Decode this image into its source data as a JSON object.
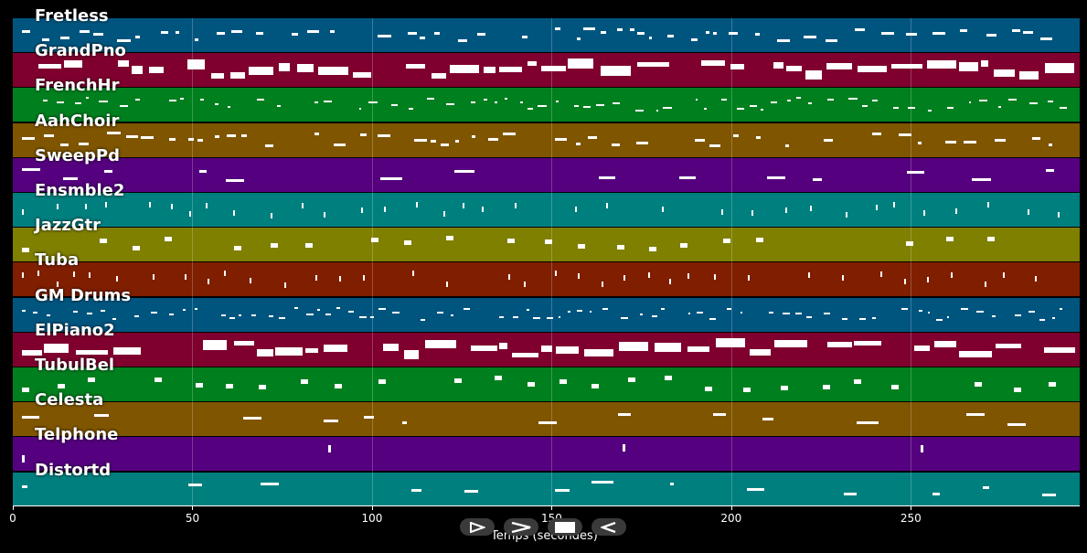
{
  "tracks": [
    {
      "name": "Fretless",
      "color": "#00557f",
      "density": "medium"
    },
    {
      "name": "GrandPno",
      "color": "#7f002f",
      "density": "heavy"
    },
    {
      "name": "FrenchHr",
      "color": "#007f1f",
      "density": "light"
    },
    {
      "name": "AahChoir",
      "color": "#7f5500",
      "density": "medium"
    },
    {
      "name": "SweepPd",
      "color": "#55007f",
      "density": "sparse"
    },
    {
      "name": "Ensmble2",
      "color": "#007f7f",
      "density": "ticks"
    },
    {
      "name": "JazzGtr",
      "color": "#7f7f00",
      "density": "blocks"
    },
    {
      "name": "Tuba",
      "color": "#7f1f00",
      "density": "ticks"
    },
    {
      "name": "GM Drums",
      "color": "#00557f",
      "density": "scattered"
    },
    {
      "name": "ElPiano2",
      "color": "#7f002f",
      "density": "heavy"
    },
    {
      "name": "TubulBel",
      "color": "#007f1f",
      "density": "blocks"
    },
    {
      "name": "Celesta",
      "color": "#7f5500",
      "density": "sparse"
    },
    {
      "name": "Telphone",
      "color": "#55007f",
      "density": "diagonal"
    },
    {
      "name": "Distortd",
      "color": "#007f7f",
      "density": "sparse"
    }
  ],
  "axis": {
    "label": "Temps (secondes)",
    "ticks": [
      "0",
      "50",
      "100",
      "150",
      "200",
      "250"
    ],
    "tick_values": [
      0,
      50,
      100,
      150,
      200,
      250
    ],
    "x_max": 297
  },
  "controls": [
    {
      "name": "play-button",
      "icon": "play-icon"
    },
    {
      "name": "forward-button",
      "icon": "forward-icon"
    },
    {
      "name": "stop-button",
      "icon": "stop-icon"
    },
    {
      "name": "back-button",
      "icon": "back-icon"
    }
  ]
}
